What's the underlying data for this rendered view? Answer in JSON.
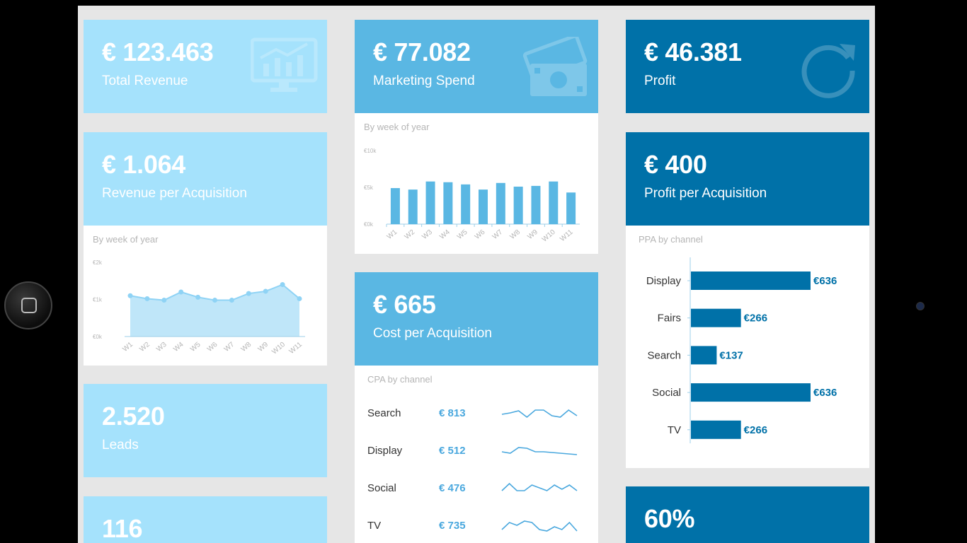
{
  "kpis": {
    "total_revenue": {
      "value": "€ 123.463",
      "label": "Total Revenue",
      "icon": "monitor-chart-icon"
    },
    "marketing_spend": {
      "value": "€ 77.082",
      "label": "Marketing Spend",
      "icon": "money-icon"
    },
    "profit": {
      "value": "€ 46.381",
      "label": "Profit",
      "icon": "refresh-icon"
    },
    "revenue_per_acquisition": {
      "value": "€ 1.064",
      "label": "Revenue per Acquisition"
    },
    "profit_per_acquisition": {
      "value": "€ 400",
      "label": "Profit per Acquisition"
    },
    "cost_per_acquisition": {
      "value": "€ 665",
      "label": "Cost per Acquisition"
    },
    "leads": {
      "value": "2.520",
      "label": "Leads"
    },
    "bottom_left": {
      "value": "116"
    },
    "bottom_right": {
      "value": "60%"
    }
  },
  "colors": {
    "light": "#a5e2fc",
    "mid": "#5ab7e3",
    "dark": "#0071a8",
    "background": "#e6e6e6"
  },
  "chart_data": [
    {
      "type": "bar",
      "title": "By week of year",
      "categories": [
        "W1",
        "W2",
        "W3",
        "W4",
        "W5",
        "W6",
        "W7",
        "W8",
        "W9",
        "W10",
        "W11"
      ],
      "values": [
        4.9,
        4.7,
        5.8,
        5.7,
        5.4,
        4.7,
        5.6,
        5.1,
        5.2,
        5.8,
        4.3
      ],
      "ytick_labels": [
        "€10k",
        "€5k",
        "€0k"
      ],
      "ylim": [
        0,
        10
      ]
    },
    {
      "type": "area",
      "title": "By week of year",
      "categories": [
        "W1",
        "W2",
        "W3",
        "W4",
        "W5",
        "W6",
        "W7",
        "W8",
        "W9",
        "W10",
        "W11"
      ],
      "values": [
        1.1,
        1.02,
        0.98,
        1.2,
        1.06,
        0.98,
        0.98,
        1.16,
        1.22,
        1.4,
        1.02
      ],
      "ytick_labels": [
        "€2k",
        "€1k",
        "€0k"
      ],
      "ylim": [
        0,
        2
      ]
    },
    {
      "type": "bar",
      "title": "PPA by channel",
      "orientation": "horizontal",
      "categories": [
        "Display",
        "Fairs",
        "Search",
        "Social",
        "TV"
      ],
      "values": [
        636,
        266,
        137,
        636,
        266
      ],
      "labels": [
        "€636",
        "€266",
        "€137",
        "€636",
        "€266"
      ]
    },
    {
      "type": "line",
      "title": "CPA by channel",
      "rows": [
        {
          "channel": "Search",
          "amount": "€ 813",
          "spark": [
            0.6,
            0.5,
            0.35,
            0.8,
            0.3,
            0.3,
            0.7,
            0.8,
            0.3,
            0.7
          ]
        },
        {
          "channel": "Display",
          "amount": "€ 512",
          "spark": [
            0.6,
            0.7,
            0.3,
            0.35,
            0.6,
            0.6,
            0.65,
            0.7,
            0.75,
            0.8
          ]
        },
        {
          "channel": "Social",
          "amount": "€ 476",
          "spark": [
            0.7,
            0.2,
            0.7,
            0.7,
            0.3,
            0.5,
            0.7,
            0.3,
            0.6,
            0.3,
            0.7
          ]
        },
        {
          "channel": "TV",
          "amount": "€ 735",
          "spark": [
            0.8,
            0.3,
            0.5,
            0.2,
            0.3,
            0.8,
            0.9,
            0.6,
            0.8,
            0.3,
            0.9
          ]
        }
      ]
    }
  ]
}
